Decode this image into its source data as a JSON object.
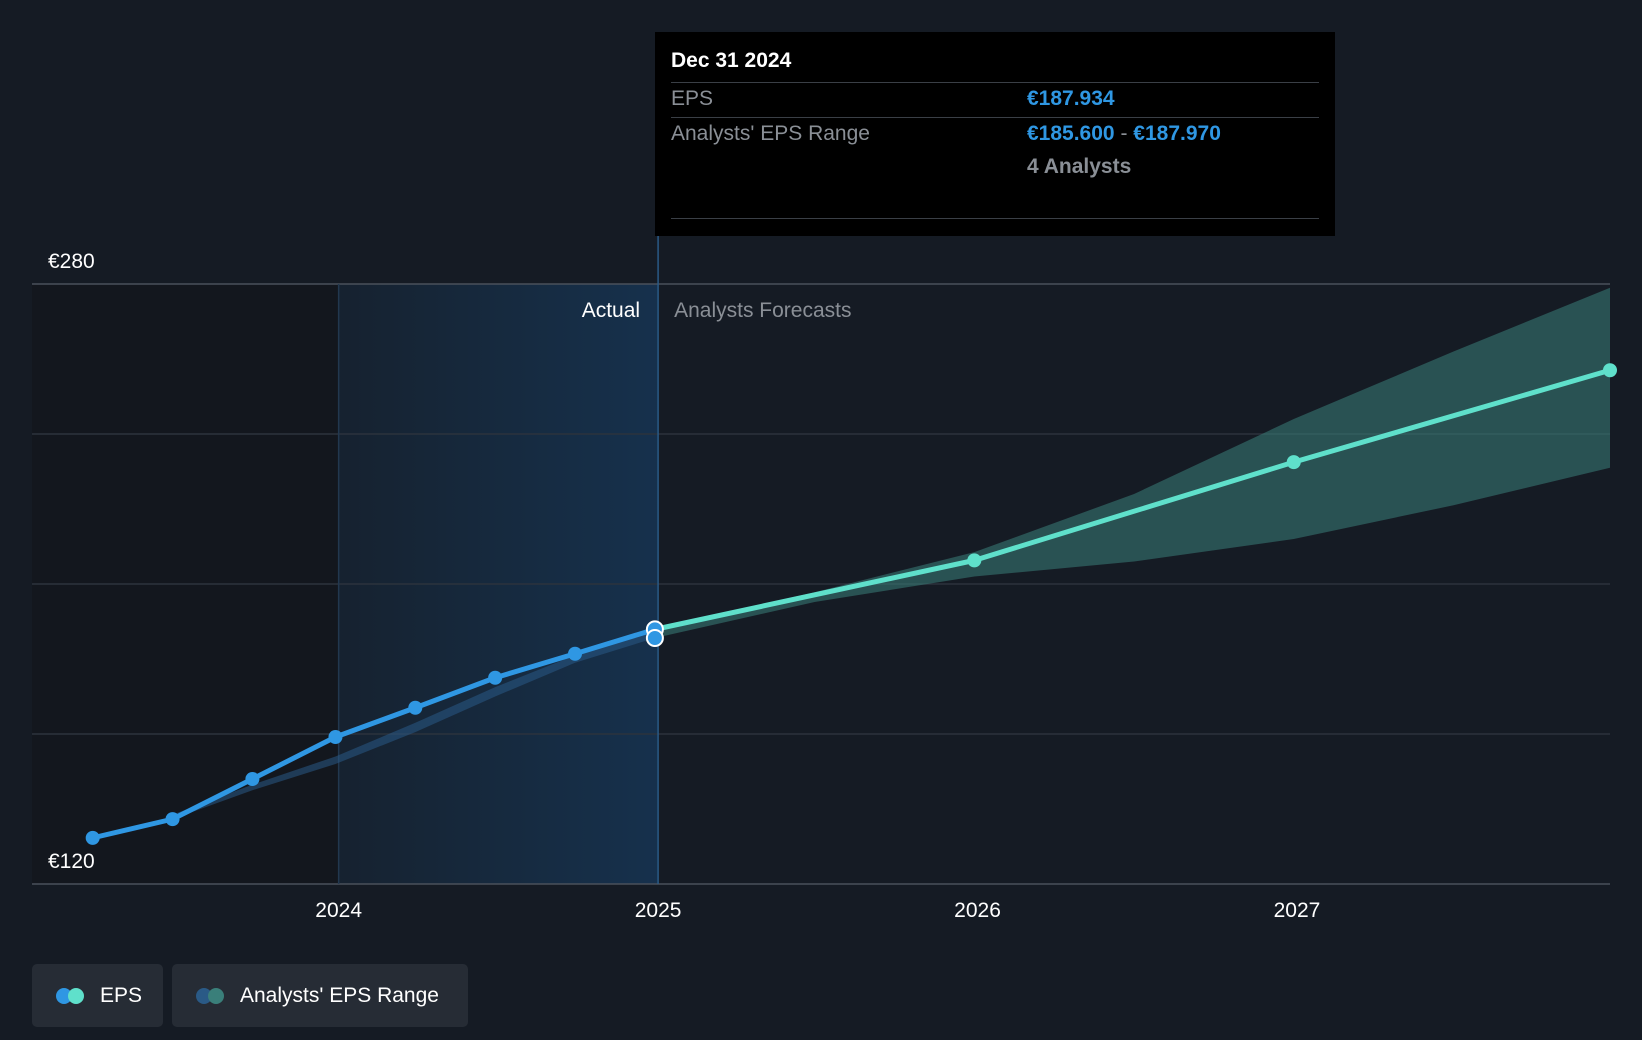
{
  "chart_data": {
    "type": "line",
    "currency": "€",
    "y_ticks": [
      {
        "value": 280,
        "label": "€280"
      },
      {
        "value": 120,
        "label": "€120"
      }
    ],
    "ylim": [
      120,
      280
    ],
    "xlim": [
      2023.04,
      2027.98
    ],
    "x_ticks": [
      {
        "value": 2024,
        "label": "2024"
      },
      {
        "value": 2025,
        "label": "2025"
      },
      {
        "value": 2026,
        "label": "2026"
      },
      {
        "value": 2027,
        "label": "2027"
      }
    ],
    "actual_label": "Actual",
    "forecast_label": "Analysts Forecasts",
    "highlight_start": 2024.0,
    "divider_x": 2025.0,
    "eps_actual": [
      {
        "x": 2023.23,
        "y": 132.3
      },
      {
        "x": 2023.48,
        "y": 137.3
      },
      {
        "x": 2023.73,
        "y": 148.0
      },
      {
        "x": 2023.99,
        "y": 159.2
      },
      {
        "x": 2024.24,
        "y": 167.0
      },
      {
        "x": 2024.49,
        "y": 175.0
      },
      {
        "x": 2024.74,
        "y": 181.4
      },
      {
        "x": 2024.99,
        "y": 187.9
      }
    ],
    "eps_forecast": [
      {
        "x": 2024.99,
        "y": 187.9
      },
      {
        "x": 2025.99,
        "y": 206.3
      },
      {
        "x": 2026.99,
        "y": 232.5
      },
      {
        "x": 2027.98,
        "y": 257.0
      }
    ],
    "analyst_range_actual": [
      {
        "x": 2023.48,
        "low": 137.3,
        "high": 138.5
      },
      {
        "x": 2023.73,
        "low": 145.0,
        "high": 146.5
      },
      {
        "x": 2023.99,
        "low": 152.0,
        "high": 154.0
      },
      {
        "x": 2024.24,
        "low": 160.5,
        "high": 163.0
      },
      {
        "x": 2024.49,
        "low": 170.0,
        "high": 172.5
      },
      {
        "x": 2024.74,
        "low": 179.0,
        "high": 181.0
      },
      {
        "x": 2024.99,
        "low": 185.6,
        "high": 187.97
      }
    ],
    "analyst_range_forecast": [
      {
        "x": 2024.99,
        "low": 185.6,
        "high": 187.97
      },
      {
        "x": 2025.49,
        "low": 195.2,
        "high": 197.8
      },
      {
        "x": 2025.99,
        "low": 202.0,
        "high": 208.5
      },
      {
        "x": 2026.49,
        "low": 206.0,
        "high": 224.0
      },
      {
        "x": 2026.99,
        "low": 212.0,
        "high": 244.0
      },
      {
        "x": 2027.49,
        "low": 221.0,
        "high": 262.0
      },
      {
        "x": 2027.98,
        "low": 231.0,
        "high": 279.0
      }
    ],
    "series": [
      {
        "name": "EPS"
      },
      {
        "name": "Analysts' EPS Range"
      }
    ],
    "colors": {
      "eps_actual": "#2f97e3",
      "eps_forecast": "#5fe0cb",
      "range_actual": "#2a5a86",
      "range_forecast": "#3a7f7a",
      "grid": "#2c333d",
      "axis": "#4a515b",
      "tick_text": "#ffffff"
    }
  },
  "tooltip": {
    "date": "Dec 31 2024",
    "eps_label": "EPS",
    "eps_value": "€187.934",
    "range_label": "Analysts' EPS Range",
    "range_low": "€185.600",
    "range_sep": "-",
    "range_high": "€187.970",
    "analysts": "4 Analysts"
  },
  "legend": {
    "items": [
      {
        "label": "EPS",
        "colors": [
          "#2f97e3",
          "#5fe0cb"
        ]
      },
      {
        "label": "Analysts' EPS Range",
        "colors": [
          "#2a5a86",
          "#3a7f7a"
        ]
      }
    ]
  }
}
